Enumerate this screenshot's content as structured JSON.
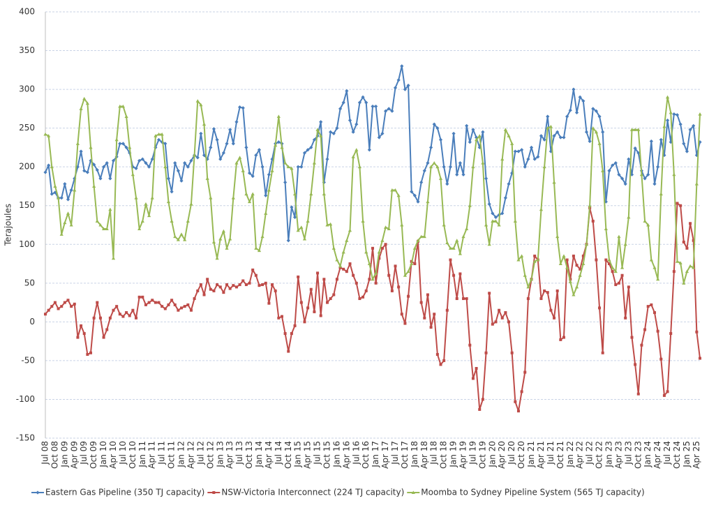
{
  "chart_data": {
    "type": "line",
    "y_label": "Terajoules",
    "ylim": [
      -150,
      400
    ],
    "yticks": [
      -150,
      -100,
      -50,
      0,
      50,
      100,
      150,
      200,
      250,
      300,
      350,
      400
    ],
    "grid": true,
    "legend": "bottom",
    "categories": [
      "Jul 08",
      null,
      null,
      "Oct 08",
      null,
      null,
      "Jan 09",
      null,
      null,
      "Apr 09",
      null,
      null,
      "Jul 09",
      null,
      null,
      "Oct 09",
      null,
      null,
      "Jan 10",
      null,
      null,
      "Apr 10",
      null,
      null,
      "Jul 10",
      null,
      null,
      "Oct 10",
      null,
      null,
      "Jan 11",
      null,
      null,
      "Apr 11",
      null,
      null,
      "Jul 11",
      null,
      null,
      "Oct 11",
      null,
      null,
      "Jan 12",
      null,
      null,
      "Apr 12",
      null,
      null,
      "Jul 12",
      null,
      null,
      "Oct 12",
      null,
      null,
      "Jan 13",
      null,
      null,
      "Apr 13",
      null,
      null,
      "Jul 13",
      null,
      null,
      "Oct 13",
      null,
      null,
      "Jan 14",
      null,
      null,
      "Apr 14",
      null,
      null,
      "Jul 14",
      null,
      null,
      "Oct 14",
      null,
      null,
      "Jan 15",
      null,
      null,
      "Apr 15",
      null,
      null,
      "Jul 15",
      null,
      null,
      "Oct 15",
      null,
      null,
      "Jan 16",
      null,
      null,
      "Apr 16",
      null,
      null,
      "Jul 16",
      null,
      null,
      "Oct 16",
      null,
      null,
      "Jan 17",
      null,
      null,
      "Apr 17",
      null,
      null,
      "Jul 17",
      null,
      null,
      "Oct 17",
      null,
      null,
      "Jan 18",
      null,
      null,
      "Apr 18",
      null,
      null,
      "Jul 18",
      null,
      null,
      "Oct 18",
      null,
      null,
      "Jan 19",
      null,
      null,
      "Apr 19",
      null,
      null,
      "Jul 19",
      null,
      null,
      "Oct 19",
      null,
      null,
      "Jan 20",
      null,
      null,
      "Apr 20",
      null,
      null,
      "Jul 20",
      null,
      null,
      "Oct 20",
      null,
      null,
      "Jan 21",
      null,
      null,
      "Apr 21",
      null,
      null,
      "Jul 21",
      null,
      null,
      "Oct 21",
      null,
      null,
      "Jan 22",
      null,
      null,
      "Apr 22",
      null,
      null,
      "Jul 22",
      null,
      null,
      "Oct 22",
      null,
      null,
      "Jan 23",
      null,
      null,
      "Apr 23",
      null,
      null,
      "Jul 23",
      null,
      null,
      "Oct 23",
      null,
      null,
      "Jan 24",
      null,
      null,
      "Apr 24",
      null,
      null,
      "Jul 24",
      null,
      null,
      "Oct 24",
      null,
      null,
      "Jan 25",
      null,
      null,
      "Apr 25",
      null
    ],
    "series": [
      {
        "name": "Eastern Gas Pipeline (350 TJ capacity)",
        "color": "#4a7ebb",
        "marker": "diamond",
        "values": [
          193,
          202,
          165,
          167,
          160,
          160,
          178,
          158,
          170,
          185,
          200,
          220,
          195,
          193,
          208,
          203,
          196,
          185,
          200,
          205,
          185,
          208,
          213,
          230,
          230,
          225,
          218,
          200,
          198,
          208,
          210,
          205,
          200,
          210,
          225,
          235,
          232,
          230,
          185,
          168,
          205,
          195,
          182,
          205,
          200,
          208,
          215,
          212,
          243,
          215,
          210,
          225,
          249,
          235,
          210,
          218,
          230,
          248,
          230,
          258,
          277,
          276,
          225,
          192,
          188,
          215,
          222,
          200,
          163,
          190,
          210,
          230,
          232,
          230,
          180,
          105,
          148,
          135,
          200,
          200,
          218,
          222,
          225,
          235,
          240,
          258,
          180,
          210,
          245,
          243,
          250,
          275,
          283,
          298,
          260,
          245,
          255,
          283,
          290,
          283,
          222,
          278,
          278,
          238,
          243,
          272,
          275,
          272,
          302,
          312,
          330,
          300,
          305,
          168,
          163,
          155,
          180,
          195,
          205,
          225,
          255,
          250,
          235,
          200,
          178,
          200,
          243,
          190,
          205,
          190,
          253,
          232,
          248,
          238,
          225,
          245,
          185,
          152,
          140,
          135,
          138,
          140,
          160,
          178,
          192,
          220,
          220,
          222,
          200,
          210,
          225,
          210,
          213,
          240,
          235,
          265,
          220,
          240,
          245,
          238,
          238,
          265,
          273,
          300,
          270,
          290,
          285,
          245,
          233,
          275,
          272,
          265,
          245,
          155,
          195,
          202,
          205,
          190,
          185,
          178,
          210,
          190,
          224,
          218,
          195,
          185,
          190,
          233,
          178,
          200,
          235,
          215,
          260,
          232,
          268,
          267,
          255,
          230,
          220,
          248,
          253,
          215,
          232
        ]
      },
      {
        "name": "NSW-Victoria Interconnect (224 TJ capacity)",
        "color": "#be4b48",
        "marker": "square",
        "values": [
          10,
          15,
          20,
          25,
          17,
          20,
          25,
          28,
          20,
          23,
          -20,
          -5,
          -15,
          -42,
          -40,
          5,
          25,
          5,
          -20,
          -10,
          5,
          15,
          20,
          10,
          7,
          12,
          8,
          15,
          5,
          32,
          32,
          22,
          25,
          28,
          25,
          25,
          20,
          17,
          22,
          28,
          22,
          15,
          18,
          20,
          22,
          15,
          30,
          40,
          48,
          35,
          55,
          42,
          40,
          48,
          45,
          38,
          48,
          43,
          47,
          45,
          48,
          53,
          48,
          50,
          67,
          60,
          47,
          48,
          50,
          24,
          48,
          40,
          5,
          7,
          -15,
          -38,
          -15,
          -5,
          58,
          25,
          0,
          18,
          42,
          13,
          63,
          8,
          55,
          25,
          30,
          35,
          55,
          70,
          68,
          65,
          75,
          60,
          50,
          30,
          32,
          40,
          55,
          95,
          50,
          82,
          95,
          100,
          60,
          40,
          72,
          45,
          10,
          -2,
          33,
          78,
          75,
          104,
          25,
          5,
          35,
          -7,
          10,
          -42,
          -55,
          -50,
          15,
          80,
          60,
          30,
          62,
          30,
          30,
          -30,
          -73,
          -60,
          -113,
          -100,
          -40,
          37,
          -3,
          0,
          15,
          5,
          12,
          0,
          -40,
          -103,
          -115,
          -90,
          -65,
          30,
          55,
          85,
          80,
          30,
          40,
          38,
          15,
          5,
          40,
          -23,
          -20,
          80,
          55,
          85,
          73,
          68,
          85,
          100,
          147,
          130,
          80,
          18,
          -40,
          80,
          75,
          65,
          48,
          50,
          60,
          5,
          45,
          -20,
          -55,
          -93,
          -30,
          -10,
          20,
          22,
          12,
          -12,
          -48,
          -95,
          -90,
          -15,
          65,
          153,
          150,
          103,
          95,
          127,
          105,
          -13,
          -47
        ]
      },
      {
        "name": "Moomba to Sydney Pipeline System (565 TJ capacity)",
        "color": "#98b954",
        "marker": "triangle",
        "values": [
          242,
          240,
          200,
          175,
          160,
          113,
          128,
          140,
          125,
          170,
          230,
          275,
          288,
          282,
          225,
          175,
          130,
          125,
          120,
          120,
          145,
          82,
          235,
          278,
          278,
          265,
          225,
          190,
          160,
          120,
          130,
          152,
          137,
          160,
          240,
          242,
          242,
          200,
          155,
          130,
          110,
          106,
          113,
          106,
          130,
          152,
          215,
          285,
          280,
          255,
          185,
          160,
          103,
          82,
          107,
          117,
          95,
          107,
          160,
          205,
          212,
          195,
          165,
          155,
          165,
          95,
          92,
          110,
          140,
          170,
          195,
          228,
          265,
          225,
          205,
          200,
          198,
          165,
          118,
          122,
          107,
          130,
          165,
          205,
          248,
          240,
          165,
          125,
          126,
          95,
          80,
          72,
          90,
          105,
          118,
          213,
          222,
          200,
          130,
          90,
          75,
          55,
          63,
          90,
          105,
          122,
          120,
          170,
          170,
          163,
          125,
          60,
          65,
          75,
          95,
          105,
          110,
          110,
          155,
          200,
          205,
          200,
          185,
          125,
          102,
          95,
          95,
          105,
          88,
          110,
          120,
          150,
          200,
          235,
          240,
          205,
          125,
          100,
          130,
          130,
          125,
          210,
          248,
          240,
          230,
          130,
          80,
          85,
          60,
          45,
          55,
          78,
          80,
          145,
          200,
          250,
          252,
          180,
          110,
          75,
          85,
          70,
          52,
          35,
          45,
          60,
          75,
          100,
          150,
          250,
          245,
          230,
          195,
          120,
          80,
          70,
          65,
          110,
          70,
          100,
          135,
          248,
          248,
          248,
          190,
          130,
          125,
          80,
          70,
          55,
          165,
          252,
          290,
          270,
          190,
          78,
          76,
          50,
          65,
          72,
          70,
          178,
          268
        ]
      }
    ]
  }
}
